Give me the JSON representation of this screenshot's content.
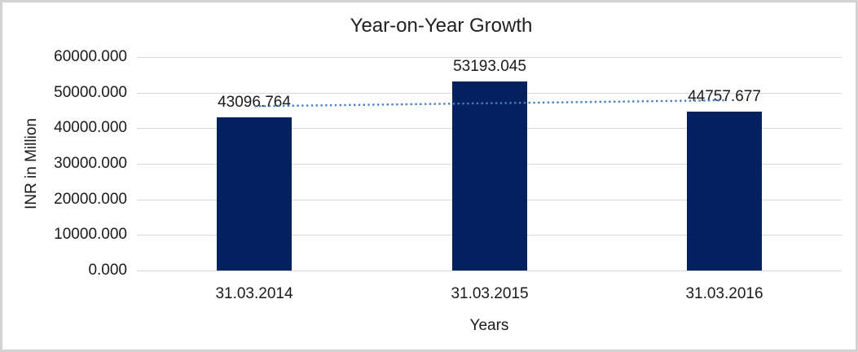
{
  "chart_data": {
    "type": "bar",
    "title": "Year-on-Year Growth",
    "xlabel": "Years",
    "ylabel": "INR in Million",
    "categories": [
      "31.03.2014",
      "31.03.2015",
      "31.03.2016"
    ],
    "values": [
      43096.764,
      53193.045,
      44757.677
    ],
    "value_labels": [
      "43096.764",
      "53193.045",
      "44757.677"
    ],
    "y_ticks": [
      "0.000",
      "10000.000",
      "20000.000",
      "30000.000",
      "40000.000",
      "50000.000",
      "60000.000"
    ],
    "ylim": [
      0,
      60000
    ],
    "grid": true,
    "legend": "none",
    "trendline": {
      "type": "linear",
      "style": "dotted",
      "color": "#4a7ec0"
    },
    "colors": {
      "bar": "#02215e",
      "gridline": "#d9d9d9",
      "text": "#1a1a1a",
      "frame_border": "#d2d2d2",
      "background": "#ffffff"
    }
  }
}
